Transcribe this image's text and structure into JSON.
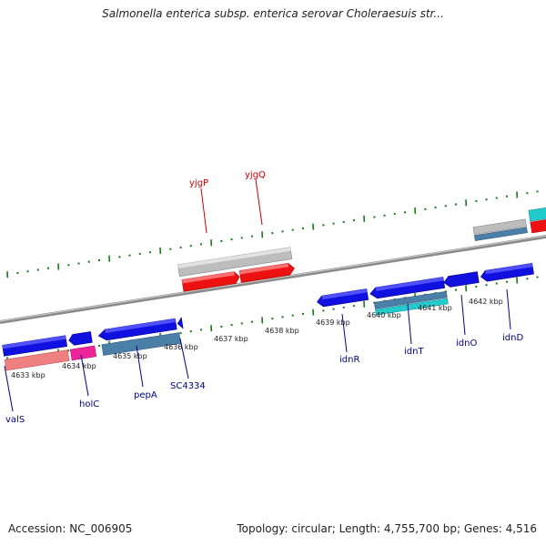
{
  "header": {
    "title": "Salmonella enterica subsp. enterica serovar Choleraesuis str..."
  },
  "footer": {
    "accession": "Accession: NC_006905",
    "topology": "Topology: circular; Length: 4,755,700 bp; Genes: 4,516"
  },
  "colors": {
    "scale_tick": "#1a7a1a",
    "backbone": "#8a8a8a",
    "gene_label_forward": "#cc0000",
    "gene_label_reverse": "#00008b",
    "blue_gene": "#1010e0",
    "red_gene": "#ee1111",
    "grey_gene": "#bdbdbd",
    "teal_gene": "#4a7fa8",
    "cyan_gene": "#22cccc",
    "pink_gene": "#ee2299",
    "salmon_gene": "#ee8080"
  },
  "scale": {
    "labels": [
      "4633 kbp",
      "4634 kbp",
      "4635 kbp",
      "4636 kbp",
      "4637 kbp",
      "4638 kbp",
      "4639 kbp",
      "4640 kbp",
      "4641 kbp",
      "4642 kbp"
    ]
  },
  "genes": {
    "forward_labels": [
      "yjgP",
      "yjgQ"
    ],
    "reverse_labels": [
      "valS",
      "holC",
      "pepA",
      "SC4334",
      "idnR",
      "idnT",
      "idnO",
      "idnD"
    ]
  }
}
